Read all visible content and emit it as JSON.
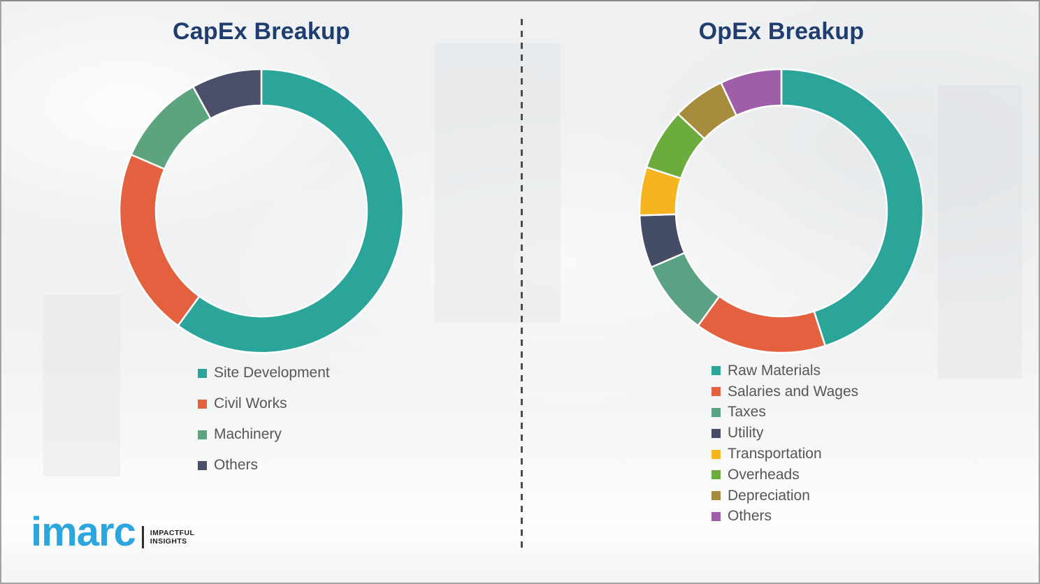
{
  "logo": {
    "brand": "imarc",
    "tagline_line1": "IMPACTFUL",
    "tagline_line2": "INSIGHTS"
  },
  "chart_data": [
    {
      "type": "pie",
      "title": "CapEx Breakup",
      "donut": true,
      "start_angle_deg": 0,
      "direction": "clockwise",
      "legend_position": "below-left",
      "labels": [
        "Site Development",
        "Civil Works",
        "Machinery",
        "Others"
      ],
      "values": [
        60,
        21.5,
        10.5,
        8
      ],
      "values_unit": "percent (estimated from arc angles, no data labels shown)",
      "colors": [
        "#2BA59A",
        "#E3613F",
        "#5BA47E",
        "#4A5069"
      ],
      "title_color": "#1F3D6F",
      "segment_gap_color": "#FFFFFF"
    },
    {
      "type": "pie",
      "title": "OpEx Breakup",
      "donut": true,
      "start_angle_deg": 0,
      "direction": "clockwise",
      "legend_position": "below-left",
      "labels": [
        "Raw Materials",
        "Salaries and Wages",
        "Taxes",
        "Utility",
        "Transportation",
        "Overheads",
        "Depreciation",
        "Others"
      ],
      "values": [
        45,
        15,
        8.5,
        6,
        5.5,
        7,
        6,
        7
      ],
      "values_unit": "percent (estimated from arc angles, no data labels shown)",
      "colors": [
        "#2BA59A",
        "#E3613F",
        "#5BA183",
        "#454C66",
        "#F6B51F",
        "#6CAB3E",
        "#A68C3C",
        "#9F5FA8"
      ],
      "title_color": "#1F3D6F",
      "segment_gap_color": "#FFFFFF"
    }
  ]
}
